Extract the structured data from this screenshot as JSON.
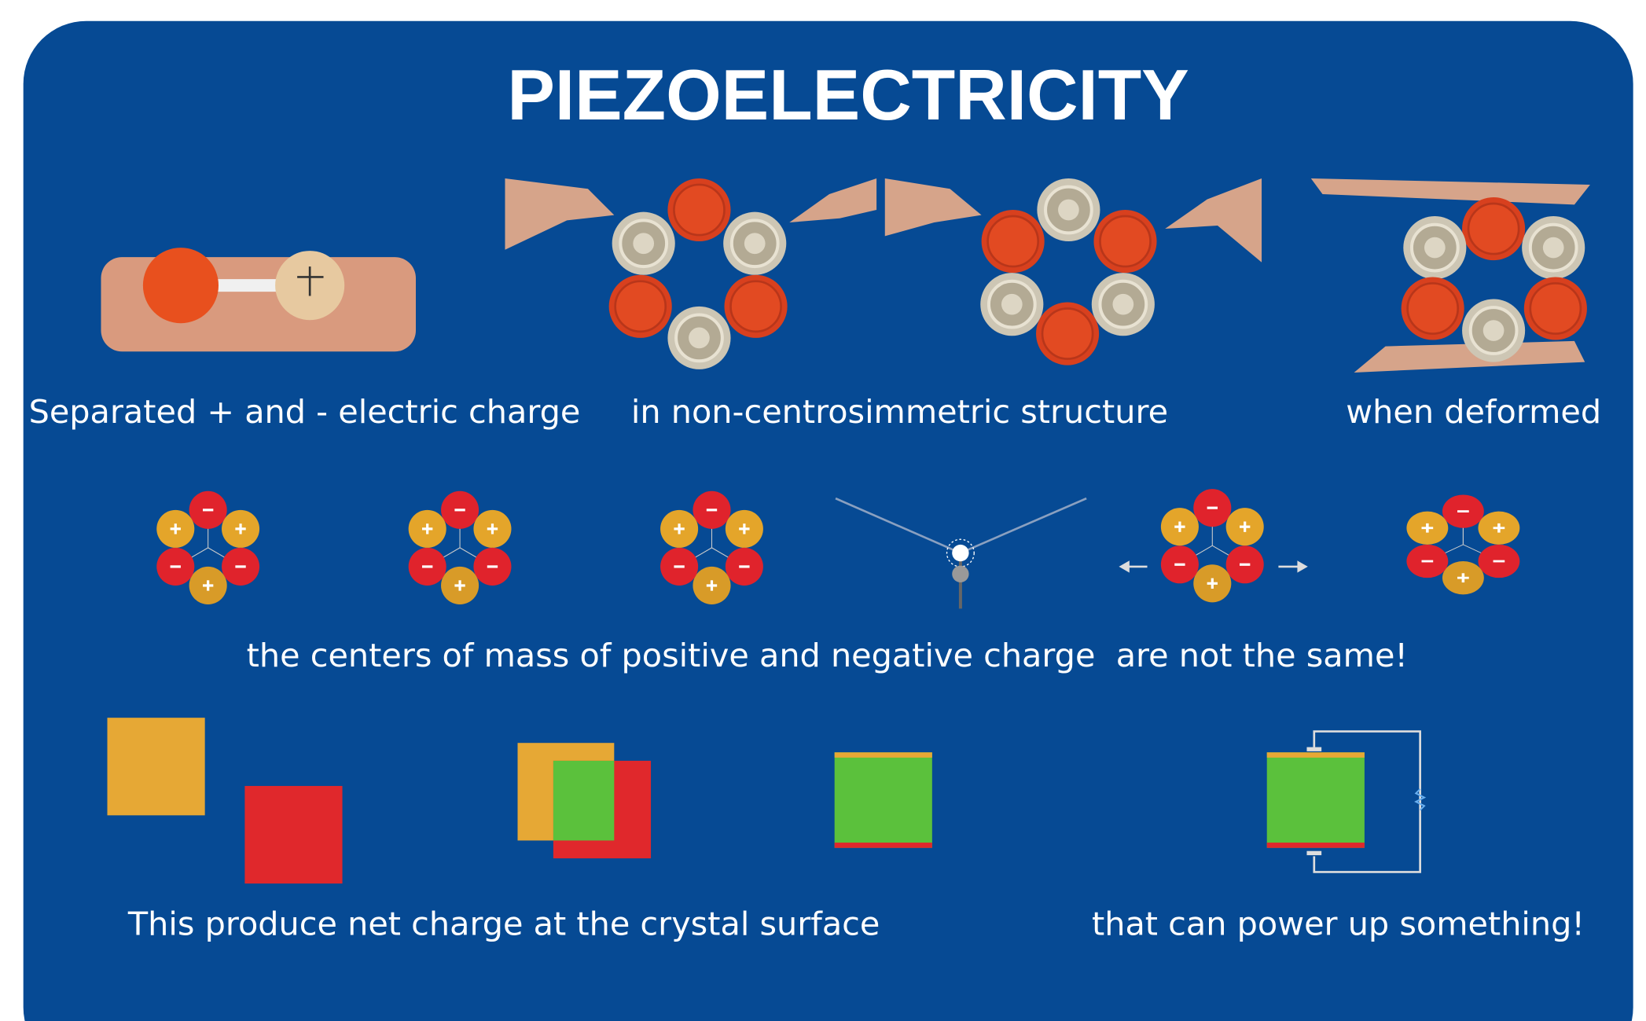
{
  "header": {
    "title": "PIEZOELECTRICITY"
  },
  "captions": {
    "row1": [
      "Separated + and - electric charge",
      "in non-centrosimmetric structure",
      "when deformed"
    ],
    "row2": "the centers of mass of positive and negative charge  are not the same!",
    "row3": [
      "This produce net charge at the crystal surface",
      "that can power up something!"
    ]
  }
}
